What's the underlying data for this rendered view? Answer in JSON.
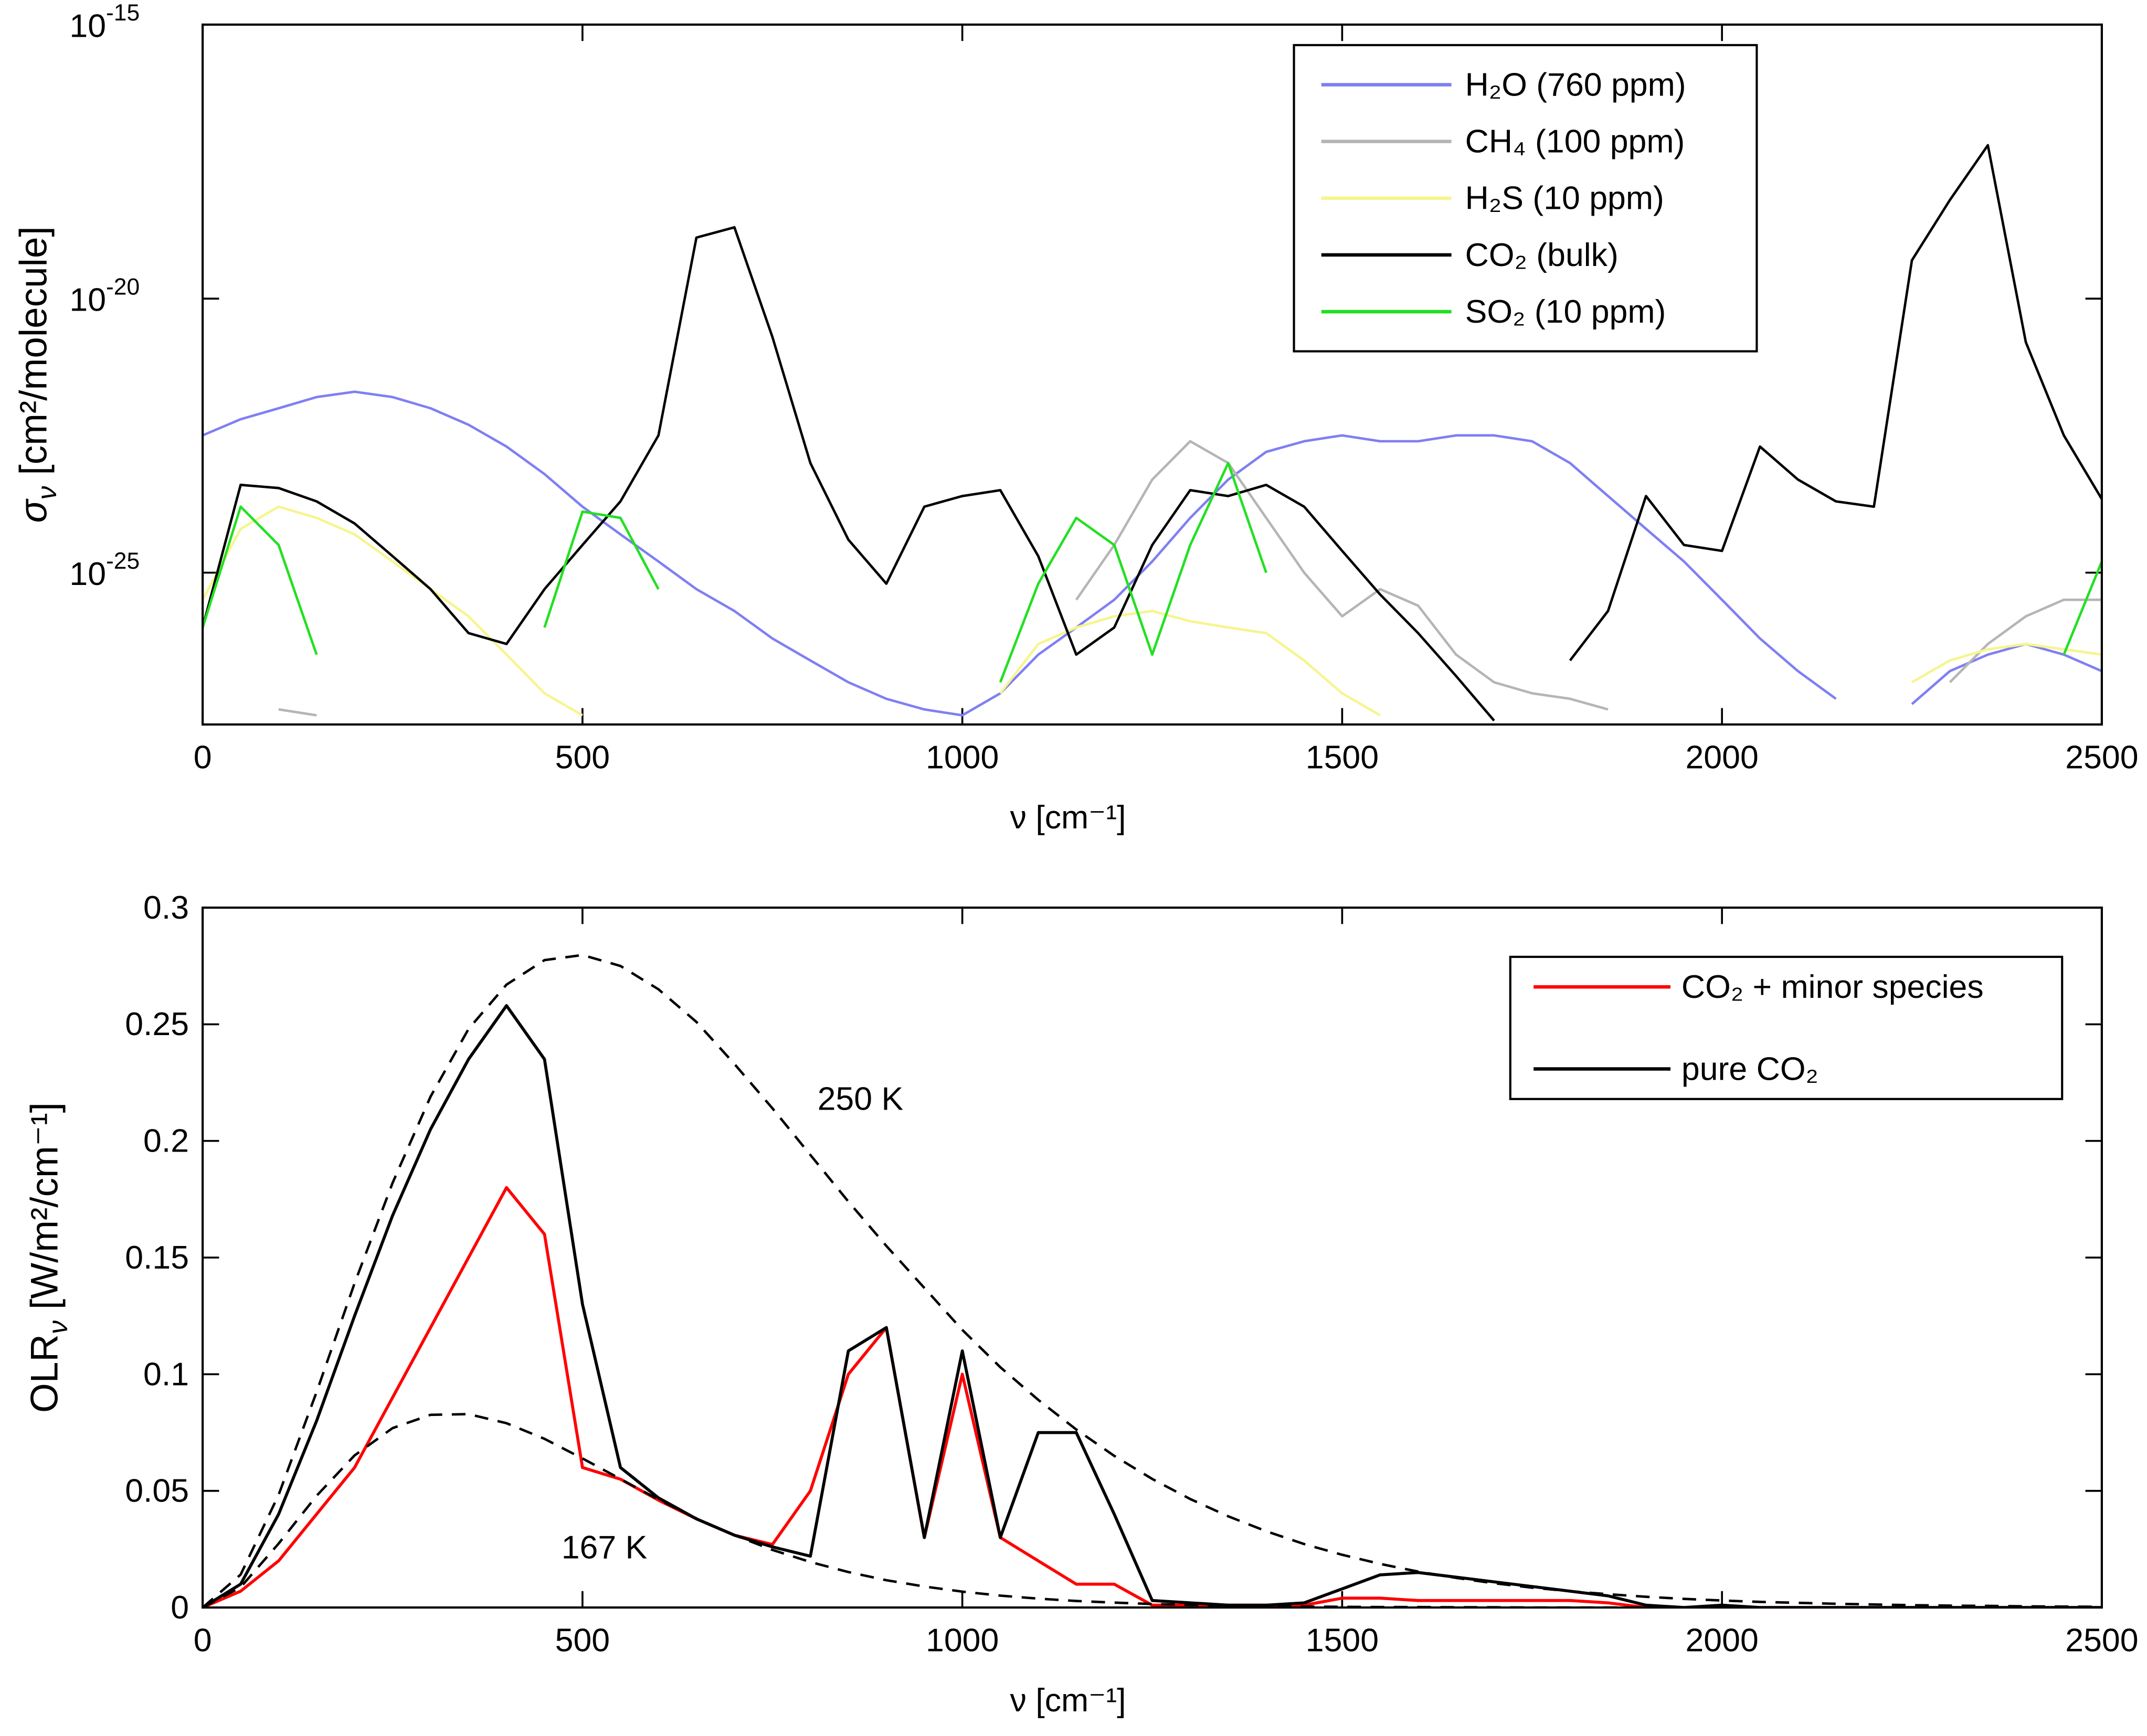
{
  "chart_data": [
    {
      "type": "line",
      "log_y": true,
      "xlabel": "ν [cm⁻¹]",
      "ylabel": {
        "symbol": "σ",
        "subscript": "ν",
        "unit": "[cm²/molecule]"
      },
      "xlim": [
        0,
        2500
      ],
      "ylim": [
        1.7e-28,
        1e-15
      ],
      "xticks": [
        0,
        500,
        1000,
        1500,
        2000,
        2500
      ],
      "yticks": [
        {
          "value": 1e-15,
          "label": "10",
          "exponent": "-15"
        },
        {
          "value": 1e-20,
          "label": "10",
          "exponent": "-20"
        },
        {
          "value": 1e-25,
          "label": "10",
          "exponent": "-25"
        }
      ],
      "legend": "upper right",
      "x": [
        0,
        50,
        100,
        150,
        200,
        250,
        300,
        350,
        400,
        450,
        500,
        550,
        600,
        650,
        700,
        750,
        800,
        850,
        900,
        950,
        1000,
        1050,
        1100,
        1150,
        1200,
        1250,
        1300,
        1350,
        1400,
        1450,
        1500,
        1550,
        1600,
        1650,
        1700,
        1750,
        1800,
        1850,
        1900,
        1950,
        2000,
        2050,
        2100,
        2150,
        2200,
        2250,
        2300,
        2350,
        2400,
        2450,
        2500
      ],
      "series": [
        {
          "name": "H₂O (760 ppm)",
          "color": "#7f7ff2",
          "values": [
            3.2e-23,
            6.3e-23,
            1e-22,
            1.6e-22,
            2e-22,
            1.6e-22,
            1e-22,
            5e-23,
            2e-23,
            6.3e-24,
            1.6e-24,
            5e-25,
            1.6e-25,
            5e-26,
            2e-26,
            6.3e-27,
            2.5e-27,
            1e-27,
            5e-28,
            3.2e-28,
            2.5e-28,
            6.3e-28,
            3.2e-27,
            1e-26,
            3.2e-26,
            1.6e-25,
            1e-24,
            5e-24,
            1.6e-23,
            2.5e-23,
            3.2e-23,
            2.5e-23,
            2.5e-23,
            3.2e-23,
            3.2e-23,
            2.5e-23,
            1e-23,
            2.5e-24,
            6.3e-25,
            1.6e-25,
            3.2e-26,
            6.3e-27,
            1.6e-27,
            5e-28,
            null,
            4e-28,
            1.6e-27,
            3.2e-27,
            5e-27,
            3.2e-27,
            1.6e-27
          ]
        },
        {
          "name": "CH₄ (100 ppm)",
          "color": "#b5b5b5",
          "values": [
            null,
            null,
            3.2e-28,
            2.5e-28,
            null,
            null,
            null,
            null,
            null,
            null,
            null,
            null,
            null,
            null,
            null,
            null,
            null,
            null,
            null,
            null,
            null,
            null,
            null,
            3.2e-26,
            3.2e-25,
            5e-24,
            2.5e-23,
            1e-23,
            1e-24,
            1e-25,
            1.6e-26,
            5e-26,
            2.5e-26,
            3.2e-27,
            1e-27,
            6.3e-28,
            5e-28,
            3.2e-28,
            null,
            null,
            null,
            null,
            null,
            null,
            null,
            null,
            1e-27,
            5e-27,
            1.6e-26,
            3.2e-26,
            3.2e-26
          ]
        },
        {
          "name": "H₂S (10 ppm)",
          "color": "#f6f58e",
          "values": [
            3.2e-26,
            6.3e-25,
            1.6e-24,
            1e-24,
            5e-25,
            1.6e-25,
            5e-26,
            1.6e-26,
            3.2e-27,
            6.3e-28,
            2.5e-28,
            null,
            null,
            null,
            null,
            null,
            null,
            null,
            null,
            null,
            null,
            6.3e-28,
            5e-27,
            1e-26,
            1.6e-26,
            2e-26,
            1.3e-26,
            1e-26,
            7.9e-27,
            2.5e-27,
            6.3e-28,
            2.5e-28,
            null,
            null,
            null,
            null,
            null,
            null,
            null,
            null,
            null,
            null,
            null,
            null,
            null,
            1e-27,
            2.5e-27,
            4e-27,
            5e-27,
            4e-27,
            3.2e-27
          ]
        },
        {
          "name": "CO₂ (bulk)",
          "color": "#000000",
          "values": [
            1e-26,
            4e-24,
            3.5e-24,
            2e-24,
            7.9e-25,
            2e-25,
            5e-26,
            7.9e-27,
            5e-27,
            5e-26,
            3.2e-25,
            2e-24,
            3.2e-23,
            1.3e-19,
            2e-19,
            2e-21,
            1e-23,
            4e-25,
            6.3e-26,
            1.6e-24,
            2.5e-24,
            3.2e-24,
            2e-25,
            3.2e-27,
            1e-26,
            3.2e-25,
            3.2e-24,
            2.5e-24,
            4e-24,
            1.6e-24,
            2.5e-25,
            4e-26,
            7.9e-27,
            1.3e-27,
            2e-28,
            null,
            2.5e-27,
            2e-26,
            2.5e-24,
            3.2e-25,
            2.5e-25,
            2e-23,
            5e-24,
            2e-24,
            1.6e-24,
            5e-20,
            6.3e-19,
            6.3e-18,
            1.6e-21,
            3.2e-23,
            2.2e-24
          ]
        },
        {
          "name": "SO₂ (10 ppm)",
          "color": "#22e022",
          "values": [
            1e-26,
            1.6e-24,
            3.2e-25,
            3.2e-27,
            null,
            null,
            null,
            null,
            null,
            1e-26,
            1.3e-24,
            1e-24,
            5e-26,
            null,
            null,
            null,
            null,
            null,
            null,
            null,
            null,
            1e-27,
            6.3e-26,
            1e-24,
            3.2e-25,
            3.2e-27,
            3.2e-25,
            1e-23,
            1e-25,
            null,
            null,
            null,
            null,
            null,
            null,
            null,
            null,
            null,
            null,
            null,
            null,
            null,
            null,
            null,
            null,
            null,
            null,
            null,
            null,
            3.2e-27,
            1.6e-25
          ]
        }
      ]
    },
    {
      "type": "line",
      "xlabel": "ν [cm⁻¹]",
      "ylabel": {
        "symbol": "OLR",
        "subscript": "ν",
        "unit": "[W/m²/cm⁻¹]"
      },
      "xlim": [
        0,
        2500
      ],
      "ylim": [
        0,
        0.3
      ],
      "xticks": [
        0,
        500,
        1000,
        1500,
        2000,
        2500
      ],
      "yticks": [
        0,
        0.05,
        0.1,
        0.15,
        0.2,
        0.25,
        0.3
      ],
      "legend": "upper right",
      "x": [
        0,
        50,
        100,
        150,
        200,
        250,
        300,
        350,
        400,
        450,
        500,
        550,
        600,
        650,
        700,
        750,
        800,
        850,
        900,
        950,
        1000,
        1050,
        1100,
        1150,
        1200,
        1250,
        1300,
        1350,
        1400,
        1450,
        1500,
        1550,
        1600,
        1650,
        1700,
        1750,
        1800,
        1850,
        1900,
        1950,
        2000,
        2050,
        2100,
        2150,
        2200,
        2250,
        2300,
        2350,
        2400,
        2450,
        2500
      ],
      "series": [
        {
          "name": "CO₂ + minor species",
          "color": "#ff0000",
          "values": [
            0,
            0.007,
            0.02,
            0.04,
            0.06,
            0.09,
            0.12,
            0.15,
            0.18,
            0.16,
            0.06,
            0.055,
            0.046,
            0.038,
            0.031,
            0.027,
            0.05,
            0.1,
            0.12,
            0.03,
            0.1,
            0.03,
            0.02,
            0.01,
            0.01,
            0.001,
            0.001,
            0.001,
            0.001,
            0.001,
            0.004,
            0.004,
            0.003,
            0.003,
            0.003,
            0.003,
            0.003,
            0.002,
            0,
            0,
            0,
            0,
            0,
            0,
            0,
            0,
            0,
            0,
            0,
            0,
            0
          ]
        },
        {
          "name": "pure CO₂",
          "color": "#000000",
          "values": [
            0,
            0.01,
            0.04,
            0.08,
            0.125,
            0.168,
            0.205,
            0.235,
            0.258,
            0.235,
            0.13,
            0.06,
            0.047,
            0.038,
            0.031,
            0.026,
            0.022,
            0.11,
            0.12,
            0.03,
            0.11,
            0.03,
            0.075,
            0.075,
            0.04,
            0.003,
            0.002,
            0.001,
            0.001,
            0.002,
            0.008,
            0.014,
            0.015,
            0.013,
            0.011,
            0.009,
            0.007,
            0.005,
            0.001,
            0,
            0.001,
            0,
            0,
            0,
            0,
            0,
            0,
            0,
            0,
            0,
            0
          ]
        }
      ],
      "reference_curves": [
        {
          "label": "250 K",
          "color": "#000000",
          "dashed": true,
          "values": [
            0,
            0.0141,
            0.0483,
            0.0924,
            0.139,
            0.182,
            0.219,
            0.248,
            0.267,
            0.2775,
            0.2797,
            0.275,
            0.265,
            0.251,
            0.233,
            0.214,
            0.194,
            0.174,
            0.155,
            0.137,
            0.119,
            0.103,
            0.089,
            0.0763,
            0.065,
            0.0551,
            0.0465,
            0.0391,
            0.0327,
            0.0272,
            0.0226,
            0.0187,
            0.0154,
            0.0127,
            0.0104,
            0.0085,
            0.007,
            0.0057,
            0.0046,
            0.0037,
            0.003,
            0.0024,
            0.002,
            0.0016,
            0.0013,
            0.001,
            0.0008,
            0.0007,
            0.0005,
            0.0004,
            0.0003
          ]
        },
        {
          "label": "167 K",
          "color": "#000000",
          "dashed": true,
          "values": [
            0,
            0.0087,
            0.0274,
            0.0479,
            0.0652,
            0.0769,
            0.0826,
            0.0829,
            0.079,
            0.0723,
            0.0639,
            0.0551,
            0.0463,
            0.0382,
            0.031,
            0.0247,
            0.0195,
            0.0152,
            0.0117,
            0.009,
            0.0068,
            0.0051,
            0.0038,
            0.0028,
            0.0021,
            0.0015,
            0.0011,
            0.0008,
            0.0006,
            0.0004,
            0.0003,
            0.0002,
            0.0002,
            0.0001,
            0.0001,
            0,
            0,
            0,
            0,
            0,
            0,
            0,
            0,
            0,
            0,
            0,
            0,
            0,
            0,
            0,
            0
          ]
        }
      ]
    }
  ]
}
